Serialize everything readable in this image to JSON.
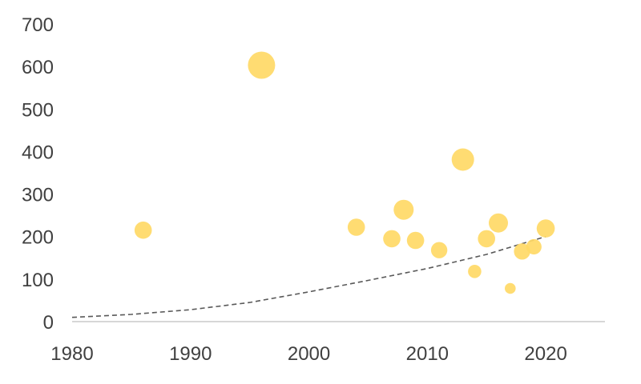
{
  "chart_data": {
    "type": "scatter",
    "variant": "bubble",
    "title": "",
    "xlabel": "",
    "ylabel": "",
    "xlim": [
      1980,
      2025
    ],
    "ylim": [
      0,
      700
    ],
    "x_ticks": [
      1980,
      1990,
      2000,
      2010,
      2020
    ],
    "y_ticks": [
      0,
      100,
      200,
      300,
      400,
      500,
      600,
      700
    ],
    "grid": false,
    "legend": "none",
    "colors": {
      "bubble": "#ffd966",
      "trendline": "#595959",
      "axis_line": "#bfbfbf",
      "tick_label": "#404040"
    },
    "series": [
      {
        "points": [
          {
            "x": 1986,
            "y": 215,
            "size": 2
          },
          {
            "x": 1996,
            "y": 603,
            "size": 5
          },
          {
            "x": 2004,
            "y": 222,
            "size": 2
          },
          {
            "x": 2007,
            "y": 195,
            "size": 2
          },
          {
            "x": 2008,
            "y": 263,
            "size": 2.7
          },
          {
            "x": 2009,
            "y": 191,
            "size": 2
          },
          {
            "x": 2011,
            "y": 168,
            "size": 1.8
          },
          {
            "x": 2013,
            "y": 381,
            "size": 3.4
          },
          {
            "x": 2014,
            "y": 118,
            "size": 1.2
          },
          {
            "x": 2015,
            "y": 195,
            "size": 2
          },
          {
            "x": 2016,
            "y": 232,
            "size": 2.5
          },
          {
            "x": 2017,
            "y": 78,
            "size": 0.8
          },
          {
            "x": 2018,
            "y": 165,
            "size": 1.8
          },
          {
            "x": 2019,
            "y": 176,
            "size": 1.6
          },
          {
            "x": 2020,
            "y": 219,
            "size": 2.2
          }
        ]
      }
    ],
    "trendline": {
      "type": "exponential",
      "style": "dashed",
      "x": [
        1980,
        1985,
        1990,
        1995,
        2000,
        2005,
        2010,
        2015,
        2020
      ],
      "y": [
        10,
        17,
        28,
        45,
        70,
        97,
        125,
        158,
        200
      ]
    }
  }
}
